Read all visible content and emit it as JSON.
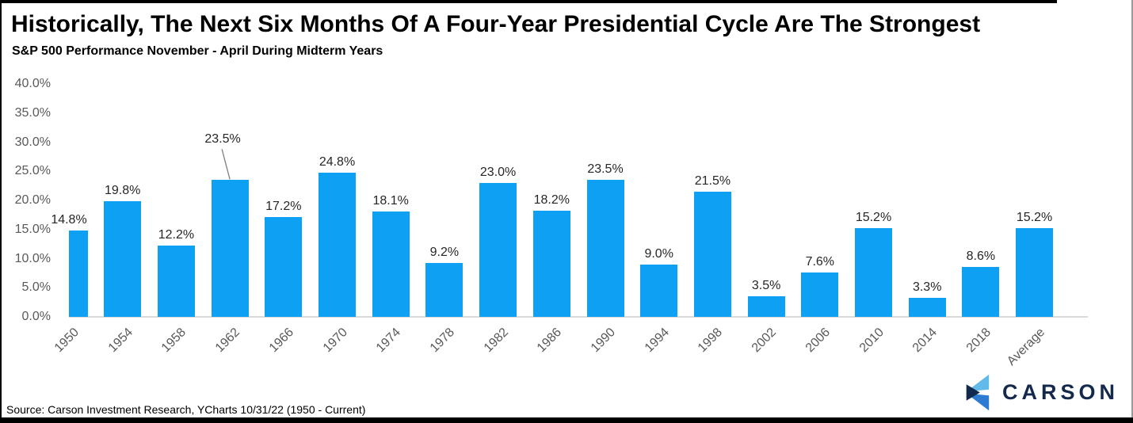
{
  "header": {
    "title": "Historically, The Next Six Months Of A Four-Year Presidential Cycle Are The Strongest",
    "subtitle": "S&P 500 Performance November - April During Midterm Years"
  },
  "footer": {
    "source": "Source: Carson Investment Research, YCharts 10/31/22 (1950 - Current)"
  },
  "logo": {
    "text": "CARSON",
    "text_color": "#14294b",
    "mark_colors": {
      "light_blue": "#62baea",
      "royal_blue": "#2e7cd1",
      "navy": "#12294b"
    }
  },
  "chart_data": {
    "type": "bar",
    "title": "Historically, The Next Six Months Of A Four-Year Presidential Cycle Are The Strongest",
    "subtitle": "S&P 500 Performance November - April During Midterm Years",
    "categories": [
      "1950",
      "1954",
      "1958",
      "1962",
      "1966",
      "1970",
      "1974",
      "1978",
      "1982",
      "1986",
      "1990",
      "1994",
      "1998",
      "2002",
      "2006",
      "2010",
      "2014",
      "2018",
      "Average"
    ],
    "values": [
      14.8,
      19.8,
      12.2,
      23.5,
      17.2,
      24.8,
      18.1,
      9.2,
      23.0,
      18.2,
      23.5,
      9.0,
      21.5,
      3.5,
      7.6,
      15.2,
      3.3,
      8.6,
      15.2
    ],
    "value_labels": [
      "14.8%",
      "19.8%",
      "12.2%",
      "23.5%",
      "17.2%",
      "24.8%",
      "18.1%",
      "9.2%",
      "23.0%",
      "18.2%",
      "23.5%",
      "9.0%",
      "21.5%",
      "3.5%",
      "7.6%",
      "15.2%",
      "3.3%",
      "8.6%",
      "15.2%"
    ],
    "bar_color": "#0ea0f2",
    "xlabel": "",
    "ylabel": "",
    "ylim": [
      0,
      40
    ],
    "yticks": {
      "values": [
        0,
        5,
        10,
        15,
        20,
        25,
        30,
        35,
        40
      ],
      "labels": [
        "0.0%",
        "5.0%",
        "10.0%",
        "15.0%",
        "20.0%",
        "25.0%",
        "30.0%",
        "35.0%",
        "40.0%"
      ]
    },
    "grid": false,
    "legend": false,
    "x_tick_rotation_deg": -45,
    "callout": {
      "index": 3,
      "style": "label displaced up-left with gray leader line to bar top"
    }
  }
}
